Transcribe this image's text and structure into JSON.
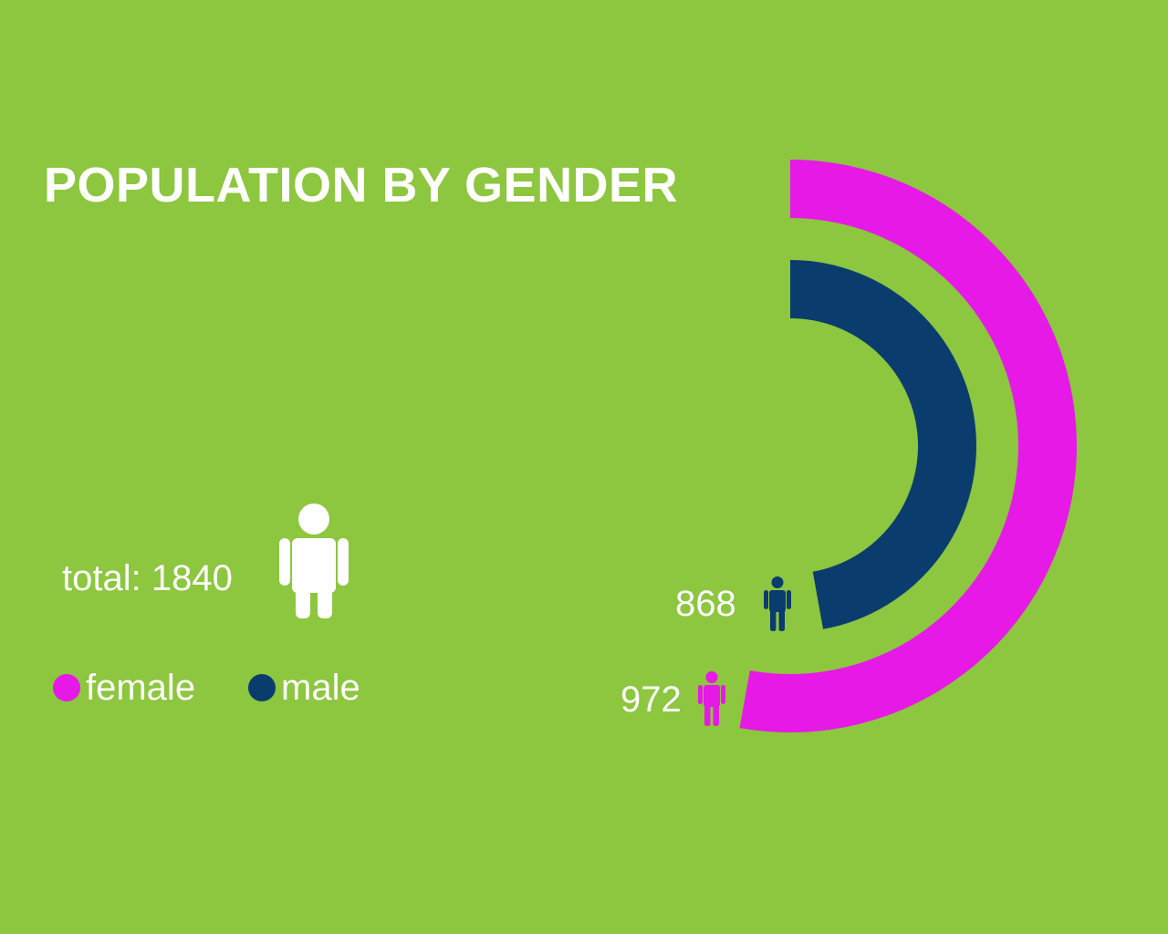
{
  "colors": {
    "background": "#8dc63f",
    "female": "#e619e6",
    "male": "#0a3d6e",
    "text": "#ffffff"
  },
  "header": {
    "title": "POPULATION BY GENDER"
  },
  "summary": {
    "total_label": "total: 1840",
    "person_icon": "person-icon"
  },
  "legend": [
    {
      "label": "female",
      "color": "#e619e6"
    },
    {
      "label": "male",
      "color": "#0a3d6e"
    }
  ],
  "chart_data": {
    "type": "pie",
    "title": "POPULATION BY GENDER",
    "total": 1840,
    "series": [
      {
        "name": "female",
        "value": 972,
        "label": "972",
        "color": "#e619e6"
      },
      {
        "name": "male",
        "value": 868,
        "label": "868",
        "color": "#0a3d6e"
      }
    ],
    "legend_position": "bottom-left"
  }
}
